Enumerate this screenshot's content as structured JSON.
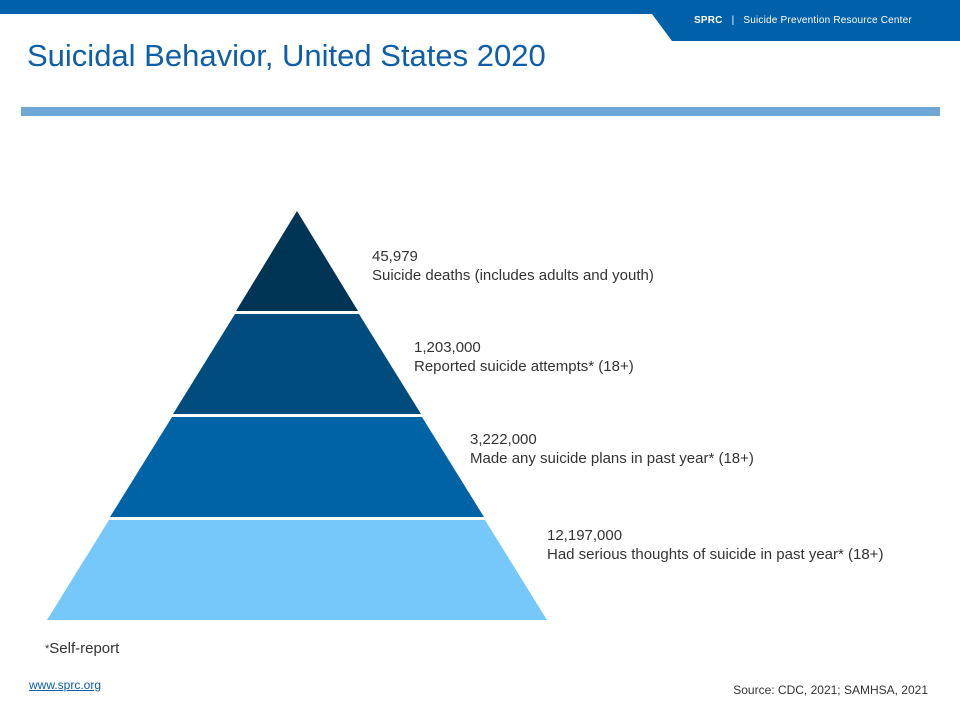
{
  "header": {
    "org_abbr": "SPRC",
    "separator": "|",
    "org_name": "Suicide Prevention Resource Center",
    "brand_color": "#0060A9"
  },
  "title": "Suicidal Behavior, United States 2020",
  "pyramid": {
    "levels": [
      {
        "value": "45,979",
        "description": "Suicide deaths (includes adults and youth)",
        "color": "#003455"
      },
      {
        "value": "1,203,000",
        "description": "Reported suicide attempts* (18+)",
        "color": "#004C7F"
      },
      {
        "value": "3,222,000",
        "description": "Made any suicide plans in past year* (18+)",
        "color": "#0063A6"
      },
      {
        "value": "12,197,000",
        "description": "Had serious thoughts of suicide in past year* (18+)",
        "color": "#76C8FA"
      }
    ]
  },
  "footnote": {
    "marker": "*",
    "text": "Self-report"
  },
  "footer": {
    "link": "www.sprc.org",
    "source": "Source: CDC, 2021; SAMHSA, 2021"
  }
}
